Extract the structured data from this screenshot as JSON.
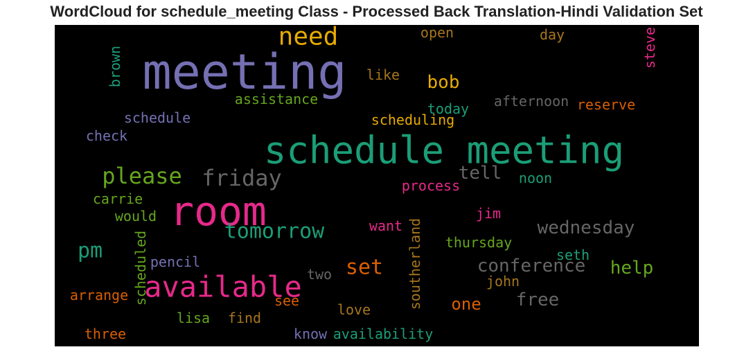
{
  "chart_data": {
    "type": "wordcloud",
    "title": "WordCloud for schedule_meeting Class - Processed Back Translation-Hindi Validation Set",
    "background": "#000000",
    "palette": [
      "#1b9e77",
      "#d95f02",
      "#7570b3",
      "#e7298a",
      "#66a61e",
      "#e6ab02",
      "#a6761d",
      "#666666"
    ],
    "words": [
      {
        "text": "schedule meeting",
        "color": "#1b9e77",
        "rotation": 0
      },
      {
        "text": "meeting",
        "color": "#7570b3",
        "rotation": 0
      },
      {
        "text": "room",
        "color": "#e7298a",
        "rotation": 0
      },
      {
        "text": "available",
        "color": "#e7298a",
        "rotation": 0
      },
      {
        "text": "need",
        "color": "#e6ab02",
        "rotation": 0
      },
      {
        "text": "please",
        "color": "#66a61e",
        "rotation": 0
      },
      {
        "text": "friday",
        "color": "#666666",
        "rotation": 0
      },
      {
        "text": "tomorrow",
        "color": "#1b9e77",
        "rotation": 0
      },
      {
        "text": "pm",
        "color": "#1b9e77",
        "rotation": 0
      },
      {
        "text": "set",
        "color": "#d95f02",
        "rotation": 0
      },
      {
        "text": "wednesday",
        "color": "#666666",
        "rotation": 0
      },
      {
        "text": "conference",
        "color": "#666666",
        "rotation": 0
      },
      {
        "text": "help",
        "color": "#66a61e",
        "rotation": 0
      },
      {
        "text": "tell",
        "color": "#666666",
        "rotation": 0
      },
      {
        "text": "bob",
        "color": "#e6ab02",
        "rotation": 0
      },
      {
        "text": "free",
        "color": "#666666",
        "rotation": 0
      },
      {
        "text": "one",
        "color": "#d95f02",
        "rotation": 0
      },
      {
        "text": "assistance",
        "color": "#66a61e",
        "rotation": 0
      },
      {
        "text": "schedule",
        "color": "#7570b3",
        "rotation": 0
      },
      {
        "text": "check",
        "color": "#7570b3",
        "rotation": 0
      },
      {
        "text": "afternoon",
        "color": "#666666",
        "rotation": 0
      },
      {
        "text": "reserve",
        "color": "#d95f02",
        "rotation": 0
      },
      {
        "text": "today",
        "color": "#1b9e77",
        "rotation": 0
      },
      {
        "text": "scheduling",
        "color": "#e6ab02",
        "rotation": 0
      },
      {
        "text": "like",
        "color": "#a6761d",
        "rotation": 0
      },
      {
        "text": "open",
        "color": "#a6761d",
        "rotation": 0
      },
      {
        "text": "day",
        "color": "#a6761d",
        "rotation": 0
      },
      {
        "text": "steve",
        "color": "#e7298a",
        "rotation": -90
      },
      {
        "text": "brown",
        "color": "#1b9e77",
        "rotation": -90
      },
      {
        "text": "process",
        "color": "#e7298a",
        "rotation": 0
      },
      {
        "text": "noon",
        "color": "#1b9e77",
        "rotation": 0
      },
      {
        "text": "carrie",
        "color": "#66a61e",
        "rotation": 0
      },
      {
        "text": "would",
        "color": "#66a61e",
        "rotation": 0
      },
      {
        "text": "jim",
        "color": "#e7298a",
        "rotation": 0
      },
      {
        "text": "want",
        "color": "#e7298a",
        "rotation": 0
      },
      {
        "text": "southerland",
        "color": "#a6761d",
        "rotation": -90
      },
      {
        "text": "scheduled",
        "color": "#66a61e",
        "rotation": -90
      },
      {
        "text": "thursday",
        "color": "#66a61e",
        "rotation": 0
      },
      {
        "text": "seth",
        "color": "#1b9e77",
        "rotation": 0
      },
      {
        "text": "pencil",
        "color": "#7570b3",
        "rotation": 0
      },
      {
        "text": "two",
        "color": "#666666",
        "rotation": 0
      },
      {
        "text": "john",
        "color": "#a6761d",
        "rotation": 0
      },
      {
        "text": "arrange",
        "color": "#d95f02",
        "rotation": 0
      },
      {
        "text": "see",
        "color": "#d95f02",
        "rotation": 0
      },
      {
        "text": "love",
        "color": "#a6761d",
        "rotation": 0
      },
      {
        "text": "lisa",
        "color": "#66a61e",
        "rotation": 0
      },
      {
        "text": "find",
        "color": "#a6761d",
        "rotation": 0
      },
      {
        "text": "three",
        "color": "#d95f02",
        "rotation": 0
      },
      {
        "text": "know",
        "color": "#7570b3",
        "rotation": 0
      },
      {
        "text": "availability",
        "color": "#1b9e77",
        "rotation": 0
      }
    ]
  }
}
